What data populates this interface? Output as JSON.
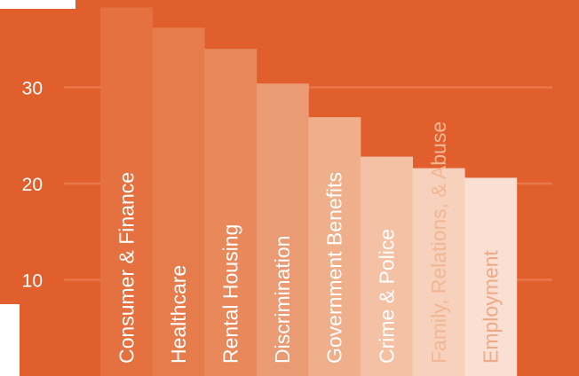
{
  "colors": {
    "background": "#e05f2c",
    "gridline": "#e8784a",
    "bar_text_light": "#ffffff",
    "bar_text_dark": "#f2b694"
  },
  "chart_data": {
    "type": "bar",
    "title": "",
    "xlabel": "",
    "ylabel": "",
    "categories": [
      "Consumer & Finance",
      "Healthcare",
      "Rental Housing",
      "Discrimination",
      "Government Benefits",
      "Crime & Police",
      "Family, Relations, & Abuse",
      "Employment"
    ],
    "values": [
      38.3,
      36.2,
      34.0,
      30.4,
      26.9,
      22.8,
      21.6,
      20.6
    ],
    "bar_colors": [
      "#e4713f",
      "#e67c4c",
      "#e8885b",
      "#eb9b73",
      "#f0af8b",
      "#f4c1a4",
      "#f7d1bc",
      "#f9e0d2"
    ],
    "label_colors": [
      "#ffffff",
      "#ffffff",
      "#ffffff",
      "#ffffff",
      "#ffffff",
      "#ffffff",
      "#f2b694",
      "#eeaa86"
    ],
    "ylim": [
      0,
      39.5
    ],
    "yticks": [
      10,
      20,
      30
    ],
    "grid": true,
    "legend": "none"
  }
}
